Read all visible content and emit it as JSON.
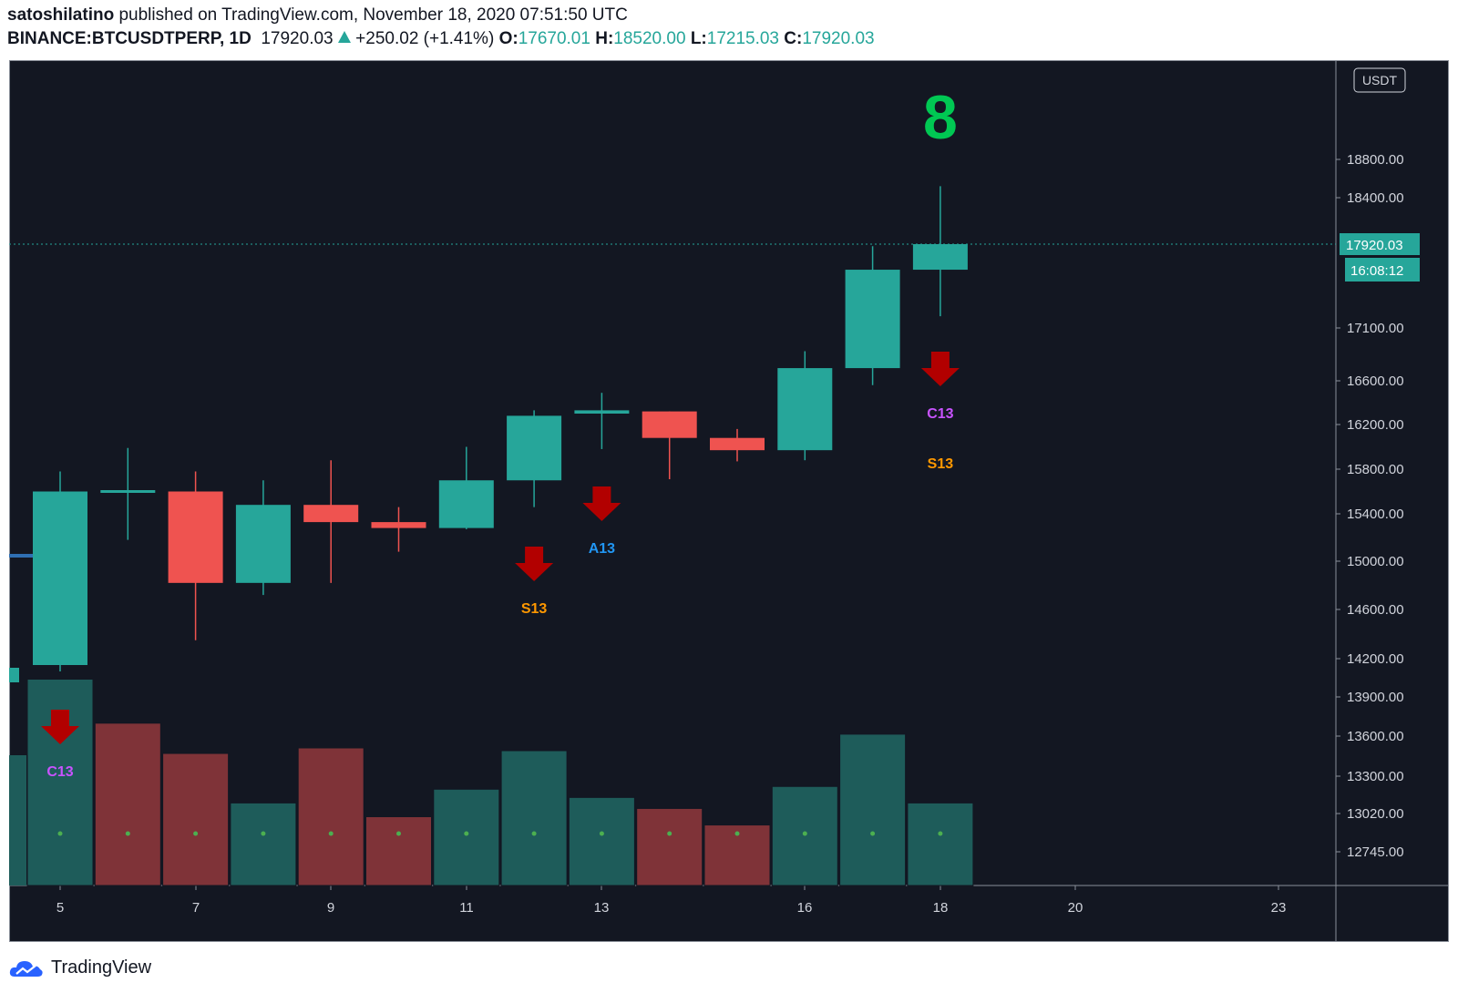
{
  "header": {
    "author": "satoshilatino",
    "published_text": "published on TradingView.com, November 18, 2020 07:51:50 UTC",
    "symbol": "BINANCE:BTCUSDTPERP, 1D",
    "last": "17920.03",
    "change": "+250.02 (+1.41%)",
    "o_label": "O:",
    "o_value": "17670.01",
    "h_label": "H:",
    "h_value": "18520.00",
    "l_label": "L:",
    "l_value": "17215.03",
    "c_label": "C:",
    "c_value": "17920.03"
  },
  "footer": {
    "brand": "TradingView"
  },
  "colors": {
    "bg": "#131722",
    "up": "#26a69a",
    "down": "#ef5350",
    "vol_up": "#1e5c5a",
    "vol_down": "#7f3338",
    "arrow": "#b20000",
    "tag_c": "#c853ff",
    "tag_s": "#ff9800",
    "tag_a": "#2196f3",
    "count": "#00c853"
  },
  "chart_data": {
    "type": "candlestick",
    "currency": "USDT",
    "y_ticks": [
      "18800.00",
      "18400.00",
      "17100.00",
      "16600.00",
      "16200.00",
      "15800.00",
      "15400.00",
      "15000.00",
      "14600.00",
      "14200.00",
      "13900.00",
      "13600.00",
      "13300.00",
      "13020.00",
      "12745.00"
    ],
    "x_ticks": [
      "5",
      "7",
      "9",
      "11",
      "13",
      "16",
      "18",
      "20",
      "23"
    ],
    "last_price_label": "17920.03",
    "countdown_label": "16:08:12",
    "candles": [
      {
        "day": "5",
        "o": 14150,
        "h": 15780,
        "l": 14100,
        "c": 15600
      },
      {
        "day": "6",
        "o": 15600,
        "h": 15990,
        "l": 15180,
        "c": 15600
      },
      {
        "day": "7",
        "o": 15600,
        "h": 15780,
        "l": 14350,
        "c": 14820
      },
      {
        "day": "8",
        "o": 14820,
        "h": 15700,
        "l": 14720,
        "c": 15480
      },
      {
        "day": "9",
        "o": 15480,
        "h": 15880,
        "l": 14820,
        "c": 15330
      },
      {
        "day": "10",
        "o": 15330,
        "h": 15460,
        "l": 15080,
        "c": 15280
      },
      {
        "day": "11",
        "o": 15280,
        "h": 16000,
        "l": 15270,
        "c": 15700
      },
      {
        "day": "12",
        "o": 15700,
        "h": 16330,
        "l": 15460,
        "c": 16280
      },
      {
        "day": "13",
        "o": 16300,
        "h": 16490,
        "l": 15980,
        "c": 16330
      },
      {
        "day": "14",
        "o": 16320,
        "h": 16320,
        "l": 15710,
        "c": 16080
      },
      {
        "day": "15",
        "o": 16080,
        "h": 16160,
        "l": 15870,
        "c": 15970
      },
      {
        "day": "16",
        "o": 15970,
        "h": 16880,
        "l": 15880,
        "c": 16720
      },
      {
        "day": "17",
        "o": 16720,
        "h": 17900,
        "l": 16560,
        "c": 17670
      },
      {
        "day": "18",
        "o": 17670,
        "h": 18520,
        "l": 17215,
        "c": 17920
      }
    ],
    "volume_relative": [
      {
        "day": "5",
        "v": 0.75,
        "up": true
      },
      {
        "day": "6",
        "v": 0.59,
        "up": false
      },
      {
        "day": "7",
        "v": 0.48,
        "up": false
      },
      {
        "day": "8",
        "v": 0.3,
        "up": true
      },
      {
        "day": "9",
        "v": 0.5,
        "up": false
      },
      {
        "day": "10",
        "v": 0.25,
        "up": false
      },
      {
        "day": "11",
        "v": 0.35,
        "up": true
      },
      {
        "day": "12",
        "v": 0.49,
        "up": true
      },
      {
        "day": "13",
        "v": 0.32,
        "up": true
      },
      {
        "day": "14",
        "v": 0.28,
        "up": false
      },
      {
        "day": "15",
        "v": 0.22,
        "up": false
      },
      {
        "day": "16",
        "v": 0.36,
        "up": true
      },
      {
        "day": "17",
        "v": 0.55,
        "up": true
      },
      {
        "day": "18",
        "v": 0.3,
        "up": true
      }
    ],
    "annotations": [
      {
        "day": "5",
        "arrow": true,
        "labels": [
          {
            "text": "C13",
            "kind": "c"
          }
        ]
      },
      {
        "day": "12",
        "arrow": true,
        "labels": [
          {
            "text": "S13",
            "kind": "s"
          }
        ]
      },
      {
        "day": "13",
        "arrow": true,
        "labels": [
          {
            "text": "A13",
            "kind": "a"
          }
        ]
      },
      {
        "day": "18",
        "arrow": true,
        "labels": [
          {
            "text": "C13",
            "kind": "c"
          },
          {
            "text": "S13",
            "kind": "s"
          }
        ]
      }
    ],
    "count_label": {
      "day": "18",
      "text": "8"
    }
  }
}
